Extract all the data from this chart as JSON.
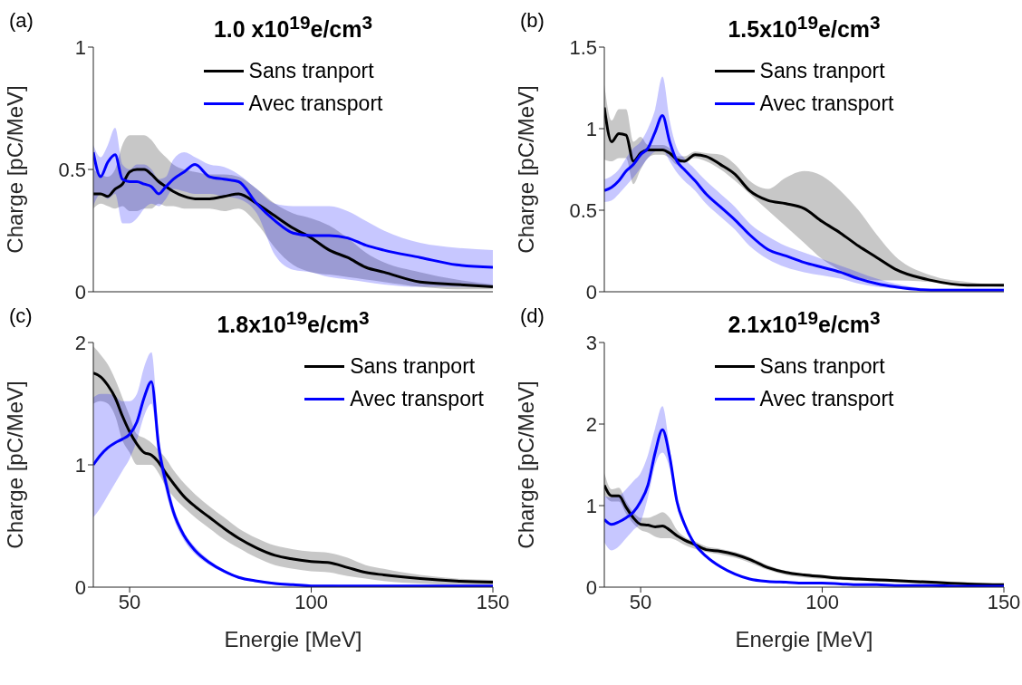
{
  "chart_data": [
    {
      "type": "line",
      "title": "1.0 x10$^{19}$e/cm$^{3}$",
      "ylabel": "Charge [pC/MeV]",
      "annotations": [
        "(a)"
      ],
      "legend": "top",
      "grid": false,
      "line_style": "solid",
      "tick_labels": "y",
      "xlim": [
        40,
        150
      ],
      "xticks": [
        50,
        100,
        150
      ],
      "ylim": [
        0,
        1
      ],
      "yticks": [
        0,
        0.5,
        1
      ],
      "x": [
        40,
        42,
        44,
        46,
        48,
        50,
        52,
        54,
        56,
        58,
        60,
        62,
        65,
        68,
        72,
        76,
        80,
        85,
        90,
        95,
        100,
        105,
        110,
        115,
        120,
        130,
        140,
        150
      ],
      "series": [
        {
          "name": "Sans tranport",
          "color": "#000000",
          "values": [
            0.4,
            0.4,
            0.39,
            0.42,
            0.44,
            0.49,
            0.5,
            0.5,
            0.48,
            0.45,
            0.43,
            0.41,
            0.39,
            0.38,
            0.38,
            0.39,
            0.4,
            0.36,
            0.31,
            0.26,
            0.22,
            0.17,
            0.14,
            0.1,
            0.08,
            0.04,
            0.03,
            0.02
          ],
          "lower": [
            0.34,
            0.36,
            0.35,
            0.34,
            0.35,
            0.33,
            0.33,
            0.34,
            0.34,
            0.36,
            0.35,
            0.35,
            0.34,
            0.34,
            0.34,
            0.33,
            0.34,
            0.28,
            0.18,
            0.11,
            0.08,
            0.07,
            0.06,
            0.05,
            0.04,
            0.02,
            0.01,
            0.01
          ],
          "upper": [
            0.5,
            0.48,
            0.47,
            0.5,
            0.6,
            0.64,
            0.64,
            0.64,
            0.62,
            0.58,
            0.55,
            0.52,
            0.5,
            0.49,
            0.48,
            0.48,
            0.47,
            0.42,
            0.36,
            0.32,
            0.3,
            0.27,
            0.22,
            0.16,
            0.12,
            0.08,
            0.05,
            0.03
          ]
        },
        {
          "name": "Avec transport",
          "color": "#0000ff",
          "values": [
            0.57,
            0.47,
            0.53,
            0.56,
            0.46,
            0.45,
            0.45,
            0.44,
            0.43,
            0.4,
            0.43,
            0.46,
            0.49,
            0.52,
            0.47,
            0.46,
            0.45,
            0.36,
            0.29,
            0.24,
            0.23,
            0.23,
            0.22,
            0.19,
            0.17,
            0.14,
            0.11,
            0.1
          ],
          "lower": [
            0.35,
            0.4,
            0.38,
            0.4,
            0.28,
            0.28,
            0.3,
            0.34,
            0.36,
            0.35,
            0.38,
            0.42,
            0.41,
            0.4,
            0.4,
            0.39,
            0.38,
            0.32,
            0.15,
            0.09,
            0.08,
            0.06,
            0.05,
            0.04,
            0.03,
            0.02,
            0.02,
            0.02
          ],
          "upper": [
            0.6,
            0.55,
            0.6,
            0.67,
            0.52,
            0.5,
            0.52,
            0.52,
            0.5,
            0.46,
            0.47,
            0.54,
            0.57,
            0.55,
            0.52,
            0.51,
            0.48,
            0.42,
            0.36,
            0.35,
            0.35,
            0.35,
            0.33,
            0.29,
            0.25,
            0.2,
            0.18,
            0.17
          ]
        }
      ]
    },
    {
      "type": "line",
      "title": "1.5x10$^{19}$e/cm$^{3}$",
      "ylabel": "Charge [pC/MeV]",
      "annotations": [
        "(b)"
      ],
      "legend": "top",
      "grid": false,
      "line_style": "solid",
      "tick_labels": "y",
      "xlim": [
        40,
        150
      ],
      "xticks": [
        50,
        100,
        150
      ],
      "ylim": [
        0,
        1.5
      ],
      "yticks": [
        0,
        0.5,
        1,
        1.5
      ],
      "x": [
        40,
        42,
        44,
        46,
        48,
        50,
        52,
        54,
        56,
        58,
        60,
        62,
        65,
        68,
        72,
        76,
        80,
        85,
        90,
        95,
        100,
        105,
        110,
        115,
        120,
        130,
        140,
        150
      ],
      "series": [
        {
          "name": "Sans tranport",
          "color": "#000000",
          "values": [
            1.13,
            0.92,
            0.97,
            0.96,
            0.8,
            0.85,
            0.87,
            0.87,
            0.87,
            0.85,
            0.81,
            0.8,
            0.84,
            0.83,
            0.78,
            0.72,
            0.62,
            0.56,
            0.54,
            0.51,
            0.43,
            0.36,
            0.28,
            0.21,
            0.14,
            0.07,
            0.04,
            0.04
          ],
          "lower": [
            0.81,
            0.8,
            0.82,
            0.82,
            0.66,
            0.75,
            0.82,
            0.84,
            0.84,
            0.82,
            0.78,
            0.8,
            0.82,
            0.8,
            0.75,
            0.68,
            0.6,
            0.5,
            0.4,
            0.3,
            0.2,
            0.13,
            0.08,
            0.07,
            0.07,
            0.06,
            0.04,
            0.03
          ],
          "upper": [
            1.27,
            1.05,
            1.12,
            1.12,
            0.92,
            0.95,
            0.9,
            0.9,
            0.9,
            0.88,
            0.83,
            0.83,
            0.86,
            0.85,
            0.84,
            0.78,
            0.68,
            0.63,
            0.7,
            0.74,
            0.71,
            0.62,
            0.5,
            0.35,
            0.22,
            0.1,
            0.06,
            0.04
          ]
        },
        {
          "name": "Avec transport",
          "color": "#0000ff",
          "values": [
            0.62,
            0.64,
            0.68,
            0.74,
            0.78,
            0.84,
            0.88,
            0.98,
            1.08,
            0.92,
            0.8,
            0.75,
            0.68,
            0.6,
            0.52,
            0.44,
            0.35,
            0.26,
            0.22,
            0.18,
            0.15,
            0.12,
            0.08,
            0.05,
            0.03,
            0.01,
            0.01,
            0.01
          ],
          "lower": [
            0.55,
            0.56,
            0.6,
            0.65,
            0.7,
            0.76,
            0.82,
            0.86,
            0.87,
            0.8,
            0.73,
            0.68,
            0.62,
            0.54,
            0.46,
            0.38,
            0.28,
            0.2,
            0.15,
            0.12,
            0.1,
            0.08,
            0.05,
            0.03,
            0.02,
            0.01,
            0.01,
            0.01
          ],
          "upper": [
            0.69,
            0.71,
            0.75,
            0.82,
            0.88,
            0.92,
            1.0,
            1.12,
            1.32,
            1.05,
            0.88,
            0.82,
            0.75,
            0.68,
            0.6,
            0.52,
            0.42,
            0.34,
            0.28,
            0.24,
            0.2,
            0.16,
            0.12,
            0.08,
            0.05,
            0.02,
            0.02,
            0.02
          ]
        }
      ]
    },
    {
      "type": "line",
      "title": "1.8x10$^{19}$e/cm$^{3}$",
      "xlabel": "Energie [MeV]",
      "ylabel": "Charge [pC/MeV]",
      "annotations": [
        "(c)"
      ],
      "legend": "top right",
      "grid": false,
      "line_style": "solid",
      "xlim": [
        40,
        150
      ],
      "xticks": [
        50,
        100,
        150
      ],
      "ylim": [
        0,
        2
      ],
      "yticks": [
        0,
        1,
        2
      ],
      "x": [
        40,
        42,
        44,
        46,
        48,
        50,
        52,
        54,
        56,
        58,
        60,
        62,
        65,
        68,
        72,
        76,
        80,
        85,
        90,
        95,
        100,
        105,
        110,
        115,
        120,
        130,
        140,
        150
      ],
      "series": [
        {
          "name": "Sans tranport",
          "color": "#000000",
          "values": [
            1.75,
            1.72,
            1.65,
            1.55,
            1.4,
            1.27,
            1.17,
            1.1,
            1.08,
            1.02,
            0.93,
            0.85,
            0.74,
            0.66,
            0.57,
            0.48,
            0.4,
            0.32,
            0.26,
            0.23,
            0.21,
            0.2,
            0.16,
            0.12,
            0.1,
            0.07,
            0.05,
            0.04
          ],
          "lower": [
            1.5,
            1.52,
            1.5,
            1.4,
            1.2,
            1.1,
            1.0,
            1.0,
            1.0,
            0.93,
            0.82,
            0.74,
            0.65,
            0.57,
            0.48,
            0.39,
            0.32,
            0.24,
            0.18,
            0.15,
            0.13,
            0.12,
            0.09,
            0.07,
            0.05,
            0.03,
            0.02,
            0.02
          ],
          "upper": [
            1.97,
            1.9,
            1.82,
            1.7,
            1.55,
            1.4,
            1.25,
            1.22,
            1.18,
            1.12,
            1.05,
            0.96,
            0.85,
            0.76,
            0.66,
            0.57,
            0.48,
            0.4,
            0.34,
            0.31,
            0.29,
            0.28,
            0.24,
            0.18,
            0.15,
            0.1,
            0.07,
            0.06
          ]
        },
        {
          "name": "Avec transport",
          "color": "#0000ff",
          "values": [
            1.0,
            1.08,
            1.14,
            1.18,
            1.21,
            1.25,
            1.35,
            1.55,
            1.68,
            1.15,
            0.85,
            0.62,
            0.42,
            0.3,
            0.2,
            0.13,
            0.08,
            0.05,
            0.03,
            0.02,
            0.01,
            0.01,
            0.01,
            0.01,
            0.01,
            0.01,
            0.01,
            0.01
          ],
          "lower": [
            0.57,
            0.65,
            0.75,
            0.85,
            0.95,
            1.05,
            1.2,
            1.4,
            1.5,
            1.05,
            0.78,
            0.57,
            0.38,
            0.27,
            0.18,
            0.12,
            0.07,
            0.04,
            0.02,
            0.01,
            0.01,
            0.01,
            0,
            0,
            0,
            0,
            0,
            0
          ],
          "upper": [
            1.55,
            1.58,
            1.58,
            1.56,
            1.52,
            1.52,
            1.58,
            1.8,
            1.92,
            1.25,
            0.92,
            0.67,
            0.45,
            0.33,
            0.22,
            0.14,
            0.09,
            0.06,
            0.04,
            0.03,
            0.02,
            0.02,
            0.01,
            0.01,
            0.01,
            0.01,
            0.01,
            0.01
          ]
        }
      ]
    },
    {
      "type": "line",
      "title": "2.1x10$^{19}$e/cm$^{3}$",
      "xlabel": "Energie [MeV]",
      "ylabel": "Charge [pC/MeV]",
      "annotations": [
        "(d)"
      ],
      "legend": "top",
      "grid": false,
      "line_style": "solid",
      "xlim": [
        40,
        150
      ],
      "xticks": [
        50,
        100,
        150
      ],
      "ylim": [
        0,
        3
      ],
      "yticks": [
        0,
        1,
        2,
        3
      ],
      "x": [
        40,
        42,
        44,
        46,
        48,
        50,
        52,
        54,
        56,
        58,
        60,
        62,
        65,
        68,
        72,
        76,
        80,
        85,
        90,
        95,
        100,
        105,
        110,
        115,
        120,
        130,
        140,
        150
      ],
      "series": [
        {
          "name": "Sans tranport",
          "color": "#000000",
          "values": [
            1.25,
            1.12,
            1.12,
            0.98,
            0.85,
            0.77,
            0.76,
            0.74,
            0.75,
            0.7,
            0.63,
            0.58,
            0.52,
            0.46,
            0.44,
            0.4,
            0.34,
            0.24,
            0.18,
            0.15,
            0.13,
            0.11,
            0.1,
            0.09,
            0.08,
            0.06,
            0.04,
            0.03
          ],
          "lower": [
            1.13,
            1.05,
            1.05,
            0.9,
            0.78,
            0.7,
            0.67,
            0.62,
            0.6,
            0.6,
            0.57,
            0.52,
            0.47,
            0.43,
            0.4,
            0.36,
            0.3,
            0.21,
            0.15,
            0.12,
            0.1,
            0.09,
            0.08,
            0.07,
            0.06,
            0.04,
            0.03,
            0.02
          ],
          "upper": [
            1.4,
            1.2,
            1.22,
            1.05,
            0.92,
            0.85,
            0.85,
            0.88,
            0.92,
            0.85,
            0.7,
            0.62,
            0.56,
            0.5,
            0.47,
            0.43,
            0.37,
            0.27,
            0.2,
            0.17,
            0.15,
            0.13,
            0.12,
            0.11,
            0.1,
            0.08,
            0.06,
            0.04
          ]
        },
        {
          "name": "Avec transport",
          "color": "#0000ff",
          "values": [
            0.83,
            0.77,
            0.8,
            0.85,
            0.92,
            1.05,
            1.25,
            1.65,
            1.93,
            1.6,
            1.05,
            0.78,
            0.52,
            0.38,
            0.25,
            0.16,
            0.1,
            0.07,
            0.06,
            0.05,
            0.05,
            0.04,
            0.03,
            0.03,
            0.02,
            0.02,
            0.01,
            0.01
          ],
          "lower": [
            0.55,
            0.45,
            0.5,
            0.6,
            0.7,
            0.8,
            1.1,
            1.5,
            1.65,
            1.45,
            0.98,
            0.74,
            0.5,
            0.36,
            0.24,
            0.15,
            0.09,
            0.06,
            0.05,
            0.04,
            0.04,
            0.03,
            0.02,
            0.02,
            0.01,
            0.01,
            0.01,
            0
          ],
          "upper": [
            1.12,
            1.1,
            1.12,
            1.2,
            1.3,
            1.4,
            1.62,
            1.95,
            2.22,
            1.7,
            1.12,
            0.82,
            0.55,
            0.4,
            0.27,
            0.17,
            0.11,
            0.08,
            0.07,
            0.06,
            0.06,
            0.05,
            0.04,
            0.04,
            0.03,
            0.03,
            0.02,
            0.02
          ]
        }
      ]
    }
  ]
}
